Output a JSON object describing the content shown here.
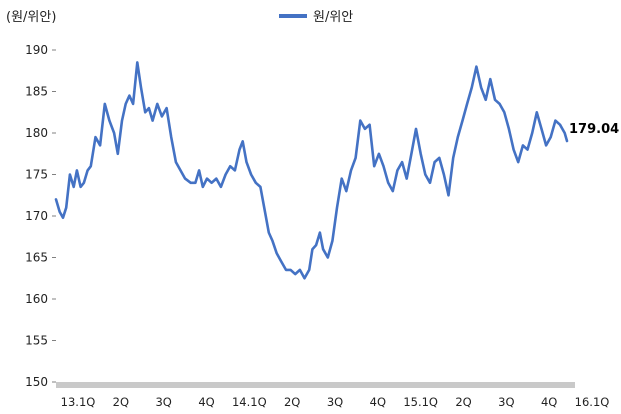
{
  "unit_label": "(원/위안)",
  "legend": {
    "series_name": "원/위안"
  },
  "colors": {
    "series": "#4472C4",
    "xaxis_band": "#C9C9C9",
    "ytick_line": "#808080"
  },
  "last_value_label": "179.04",
  "chart_data": {
    "type": "line",
    "xlim": [
      0,
      12.2
    ],
    "ylim": [
      150,
      190
    ],
    "yticks": [
      150,
      155,
      160,
      165,
      170,
      175,
      180,
      185,
      190
    ],
    "grid": false,
    "legend_position": "top-center",
    "ylabel": "(원/위안)",
    "xticks": [
      {
        "pos": 0.0,
        "label": "13.1Q"
      },
      {
        "pos": 1.0,
        "label": "2Q"
      },
      {
        "pos": 2.0,
        "label": "3Q"
      },
      {
        "pos": 3.0,
        "label": "4Q"
      },
      {
        "pos": 4.0,
        "label": "14.1Q"
      },
      {
        "pos": 5.0,
        "label": "2Q"
      },
      {
        "pos": 6.0,
        "label": "3Q"
      },
      {
        "pos": 7.0,
        "label": "4Q"
      },
      {
        "pos": 8.0,
        "label": "15.1Q"
      },
      {
        "pos": 9.0,
        "label": "2Q"
      },
      {
        "pos": 10.0,
        "label": "3Q"
      },
      {
        "pos": 11.0,
        "label": "4Q"
      },
      {
        "pos": 12.0,
        "label": "16.1Q"
      }
    ],
    "series": [
      {
        "name": "원/위안",
        "points": [
          [
            0.0,
            172.0
          ],
          [
            0.08,
            170.5
          ],
          [
            0.15,
            169.8
          ],
          [
            0.22,
            171.0
          ],
          [
            0.3,
            175.0
          ],
          [
            0.38,
            173.5
          ],
          [
            0.45,
            175.5
          ],
          [
            0.53,
            173.5
          ],
          [
            0.6,
            174.0
          ],
          [
            0.68,
            175.5
          ],
          [
            0.75,
            176.0
          ],
          [
            0.85,
            179.5
          ],
          [
            0.95,
            178.5
          ],
          [
            1.05,
            183.5
          ],
          [
            1.15,
            181.5
          ],
          [
            1.25,
            180.0
          ],
          [
            1.33,
            177.5
          ],
          [
            1.42,
            181.5
          ],
          [
            1.5,
            183.5
          ],
          [
            1.58,
            184.5
          ],
          [
            1.66,
            183.5
          ],
          [
            1.75,
            188.5
          ],
          [
            1.83,
            185.5
          ],
          [
            1.92,
            182.5
          ],
          [
            2.0,
            183.0
          ],
          [
            2.08,
            181.5
          ],
          [
            2.18,
            183.5
          ],
          [
            2.28,
            182.0
          ],
          [
            2.38,
            183.0
          ],
          [
            2.48,
            179.5
          ],
          [
            2.58,
            176.5
          ],
          [
            2.68,
            175.5
          ],
          [
            2.78,
            174.5
          ],
          [
            2.9,
            174.0
          ],
          [
            3.0,
            174.0
          ],
          [
            3.08,
            175.5
          ],
          [
            3.16,
            173.5
          ],
          [
            3.25,
            174.5
          ],
          [
            3.35,
            174.0
          ],
          [
            3.45,
            174.5
          ],
          [
            3.55,
            173.5
          ],
          [
            3.65,
            175.0
          ],
          [
            3.75,
            176.0
          ],
          [
            3.85,
            175.5
          ],
          [
            3.95,
            178.0
          ],
          [
            4.02,
            179.0
          ],
          [
            4.1,
            176.5
          ],
          [
            4.2,
            175.0
          ],
          [
            4.3,
            174.0
          ],
          [
            4.4,
            173.5
          ],
          [
            4.5,
            170.5
          ],
          [
            4.58,
            168.0
          ],
          [
            4.66,
            167.0
          ],
          [
            4.75,
            165.5
          ],
          [
            4.85,
            164.5
          ],
          [
            4.95,
            163.5
          ],
          [
            5.05,
            163.5
          ],
          [
            5.15,
            163.0
          ],
          [
            5.25,
            163.5
          ],
          [
            5.35,
            162.5
          ],
          [
            5.45,
            163.5
          ],
          [
            5.52,
            166.0
          ],
          [
            5.6,
            166.5
          ],
          [
            5.68,
            168.0
          ],
          [
            5.75,
            166.0
          ],
          [
            5.85,
            165.0
          ],
          [
            5.95,
            167.0
          ],
          [
            6.05,
            171.0
          ],
          [
            6.15,
            174.5
          ],
          [
            6.25,
            173.0
          ],
          [
            6.35,
            175.5
          ],
          [
            6.45,
            177.0
          ],
          [
            6.55,
            181.5
          ],
          [
            6.65,
            180.5
          ],
          [
            6.75,
            181.0
          ],
          [
            6.85,
            176.0
          ],
          [
            6.95,
            177.5
          ],
          [
            7.05,
            176.0
          ],
          [
            7.15,
            174.0
          ],
          [
            7.25,
            173.0
          ],
          [
            7.35,
            175.5
          ],
          [
            7.45,
            176.5
          ],
          [
            7.55,
            174.5
          ],
          [
            7.65,
            177.5
          ],
          [
            7.75,
            180.5
          ],
          [
            7.85,
            177.5
          ],
          [
            7.95,
            175.0
          ],
          [
            8.05,
            174.0
          ],
          [
            8.15,
            176.5
          ],
          [
            8.25,
            177.0
          ],
          [
            8.35,
            175.0
          ],
          [
            8.45,
            172.5
          ],
          [
            8.55,
            177.0
          ],
          [
            8.65,
            179.5
          ],
          [
            8.75,
            181.5
          ],
          [
            8.85,
            183.5
          ],
          [
            8.95,
            185.5
          ],
          [
            9.05,
            188.0
          ],
          [
            9.15,
            185.5
          ],
          [
            9.25,
            184.0
          ],
          [
            9.35,
            186.5
          ],
          [
            9.45,
            184.0
          ],
          [
            9.55,
            183.5
          ],
          [
            9.65,
            182.5
          ],
          [
            9.75,
            180.5
          ],
          [
            9.85,
            178.0
          ],
          [
            9.95,
            176.5
          ],
          [
            10.05,
            178.5
          ],
          [
            10.15,
            178.0
          ],
          [
            10.25,
            180.0
          ],
          [
            10.35,
            182.5
          ],
          [
            10.45,
            180.5
          ],
          [
            10.55,
            178.5
          ],
          [
            10.65,
            179.5
          ],
          [
            10.75,
            181.5
          ],
          [
            10.85,
            181.0
          ],
          [
            10.95,
            180.0
          ],
          [
            11.0,
            179.04
          ]
        ]
      }
    ]
  }
}
